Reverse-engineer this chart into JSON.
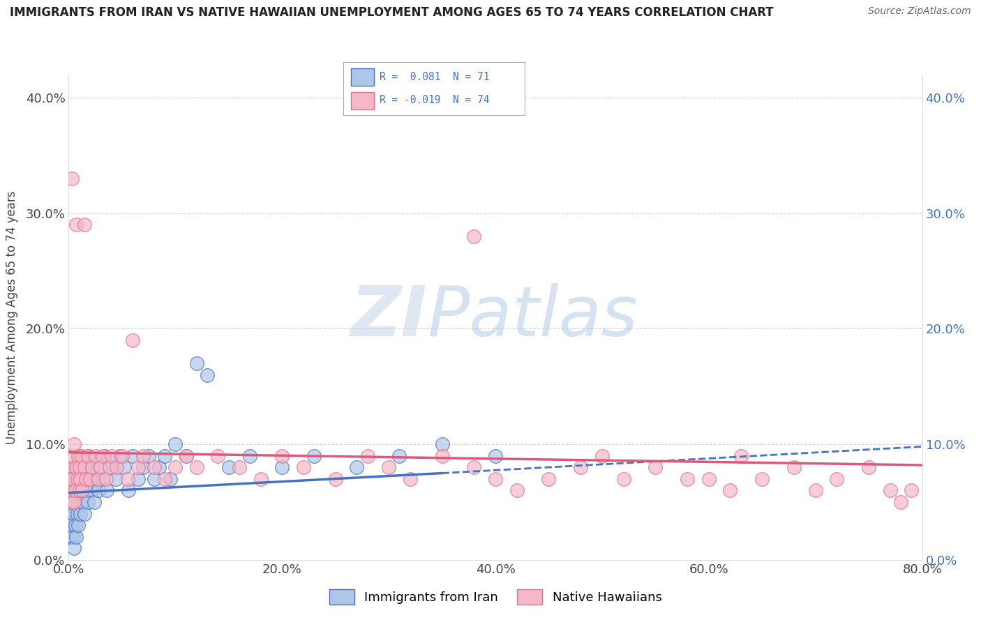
{
  "title": "IMMIGRANTS FROM IRAN VS NATIVE HAWAIIAN UNEMPLOYMENT AMONG AGES 65 TO 74 YEARS CORRELATION CHART",
  "source": "Source: ZipAtlas.com",
  "ylabel_label": "Unemployment Among Ages 65 to 74 years",
  "blue_color": "#aec6e8",
  "pink_color": "#f5b8c8",
  "blue_edge": "#4472c4",
  "pink_edge": "#e07090",
  "blue_line_color": "#4472c4",
  "pink_line_color": "#e05878",
  "watermark_zi": "ZI",
  "watermark_patlas": "Patlas",
  "xlim": [
    0.0,
    0.8
  ],
  "ylim": [
    0.0,
    0.42
  ],
  "x_ticks": [
    0.0,
    0.2,
    0.4,
    0.6,
    0.8
  ],
  "y_ticks": [
    0.0,
    0.1,
    0.2,
    0.3,
    0.4
  ],
  "blue_trend": {
    "x": [
      0.0,
      0.35,
      0.8
    ],
    "y": [
      0.058,
      0.075,
      0.098
    ]
  },
  "pink_trend": {
    "x": [
      0.0,
      0.8
    ],
    "y": [
      0.093,
      0.082
    ]
  },
  "blue_scatter_x": [
    0.001,
    0.001,
    0.001,
    0.001,
    0.001,
    0.002,
    0.002,
    0.002,
    0.003,
    0.003,
    0.003,
    0.004,
    0.004,
    0.005,
    0.005,
    0.005,
    0.006,
    0.006,
    0.007,
    0.007,
    0.008,
    0.008,
    0.009,
    0.009,
    0.01,
    0.01,
    0.011,
    0.011,
    0.012,
    0.013,
    0.014,
    0.015,
    0.016,
    0.017,
    0.018,
    0.019,
    0.02,
    0.021,
    0.022,
    0.024,
    0.026,
    0.028,
    0.03,
    0.032,
    0.034,
    0.036,
    0.04,
    0.044,
    0.048,
    0.052,
    0.056,
    0.06,
    0.065,
    0.07,
    0.075,
    0.08,
    0.085,
    0.09,
    0.095,
    0.1,
    0.11,
    0.12,
    0.13,
    0.15,
    0.17,
    0.2,
    0.23,
    0.27,
    0.31,
    0.35,
    0.4
  ],
  "blue_scatter_y": [
    0.02,
    0.03,
    0.04,
    0.05,
    0.07,
    0.02,
    0.04,
    0.06,
    0.03,
    0.05,
    0.07,
    0.02,
    0.06,
    0.01,
    0.04,
    0.08,
    0.03,
    0.06,
    0.02,
    0.07,
    0.04,
    0.08,
    0.03,
    0.07,
    0.05,
    0.09,
    0.04,
    0.08,
    0.06,
    0.05,
    0.07,
    0.04,
    0.08,
    0.06,
    0.05,
    0.09,
    0.07,
    0.06,
    0.08,
    0.05,
    0.07,
    0.06,
    0.08,
    0.07,
    0.09,
    0.06,
    0.08,
    0.07,
    0.09,
    0.08,
    0.06,
    0.09,
    0.07,
    0.08,
    0.09,
    0.07,
    0.08,
    0.09,
    0.07,
    0.1,
    0.09,
    0.17,
    0.16,
    0.08,
    0.09,
    0.08,
    0.09,
    0.08,
    0.09,
    0.1,
    0.09
  ],
  "pink_scatter_x": [
    0.001,
    0.001,
    0.002,
    0.003,
    0.003,
    0.004,
    0.005,
    0.005,
    0.006,
    0.007,
    0.007,
    0.008,
    0.009,
    0.01,
    0.01,
    0.011,
    0.012,
    0.013,
    0.015,
    0.016,
    0.018,
    0.02,
    0.022,
    0.025,
    0.028,
    0.03,
    0.032,
    0.035,
    0.038,
    0.04,
    0.045,
    0.05,
    0.055,
    0.06,
    0.065,
    0.07,
    0.08,
    0.09,
    0.1,
    0.11,
    0.12,
    0.14,
    0.16,
    0.18,
    0.2,
    0.22,
    0.25,
    0.28,
    0.3,
    0.32,
    0.35,
    0.38,
    0.4,
    0.42,
    0.45,
    0.48,
    0.5,
    0.52,
    0.55,
    0.58,
    0.6,
    0.62,
    0.65,
    0.68,
    0.7,
    0.72,
    0.75,
    0.77,
    0.78,
    0.79,
    0.003,
    0.015,
    0.38,
    0.63
  ],
  "pink_scatter_y": [
    0.06,
    0.08,
    0.07,
    0.05,
    0.09,
    0.07,
    0.05,
    0.1,
    0.06,
    0.08,
    0.29,
    0.07,
    0.09,
    0.06,
    0.08,
    0.07,
    0.09,
    0.06,
    0.08,
    0.07,
    0.09,
    0.07,
    0.08,
    0.09,
    0.07,
    0.08,
    0.09,
    0.07,
    0.08,
    0.09,
    0.08,
    0.09,
    0.07,
    0.19,
    0.08,
    0.09,
    0.08,
    0.07,
    0.08,
    0.09,
    0.08,
    0.09,
    0.08,
    0.07,
    0.09,
    0.08,
    0.07,
    0.09,
    0.08,
    0.07,
    0.09,
    0.08,
    0.07,
    0.06,
    0.07,
    0.08,
    0.09,
    0.07,
    0.08,
    0.07,
    0.07,
    0.06,
    0.07,
    0.08,
    0.06,
    0.07,
    0.08,
    0.06,
    0.05,
    0.06,
    0.33,
    0.29,
    0.28,
    0.09
  ],
  "background_color": "#ffffff",
  "grid_color": "#cccccc"
}
